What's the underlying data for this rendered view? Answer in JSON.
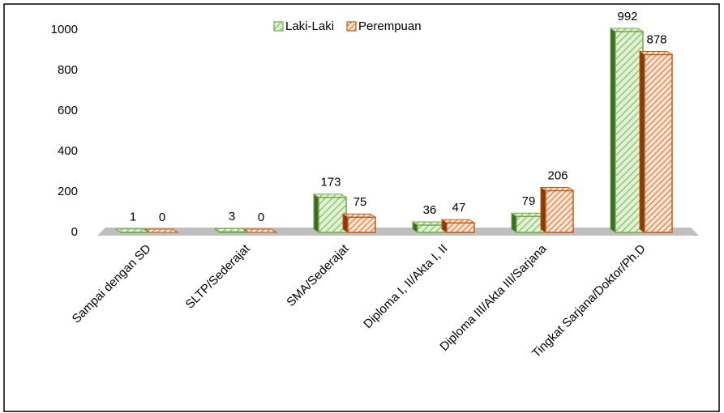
{
  "chart_data": {
    "type": "bar3d",
    "categories": [
      "Sampai dengan SD",
      "SLTP/Sederajat",
      "SMA/Sederajat",
      "Diploma I, II/Akta I, II",
      "Diploma III/Akta III/Sarjana",
      "Tingkat Sarjana/Doktor/Ph.D"
    ],
    "series": [
      {
        "name": "Laki-Laki",
        "color": "#70ad47",
        "values": [
          1,
          3,
          173,
          36,
          79,
          992
        ]
      },
      {
        "name": "Perempuan",
        "color": "#c55a11",
        "values": [
          0,
          0,
          75,
          47,
          206,
          878
        ]
      }
    ],
    "ylim": [
      0,
      1000
    ],
    "yticks": [
      0,
      200,
      400,
      600,
      800,
      1000
    ],
    "grid": false,
    "legend": "top"
  }
}
